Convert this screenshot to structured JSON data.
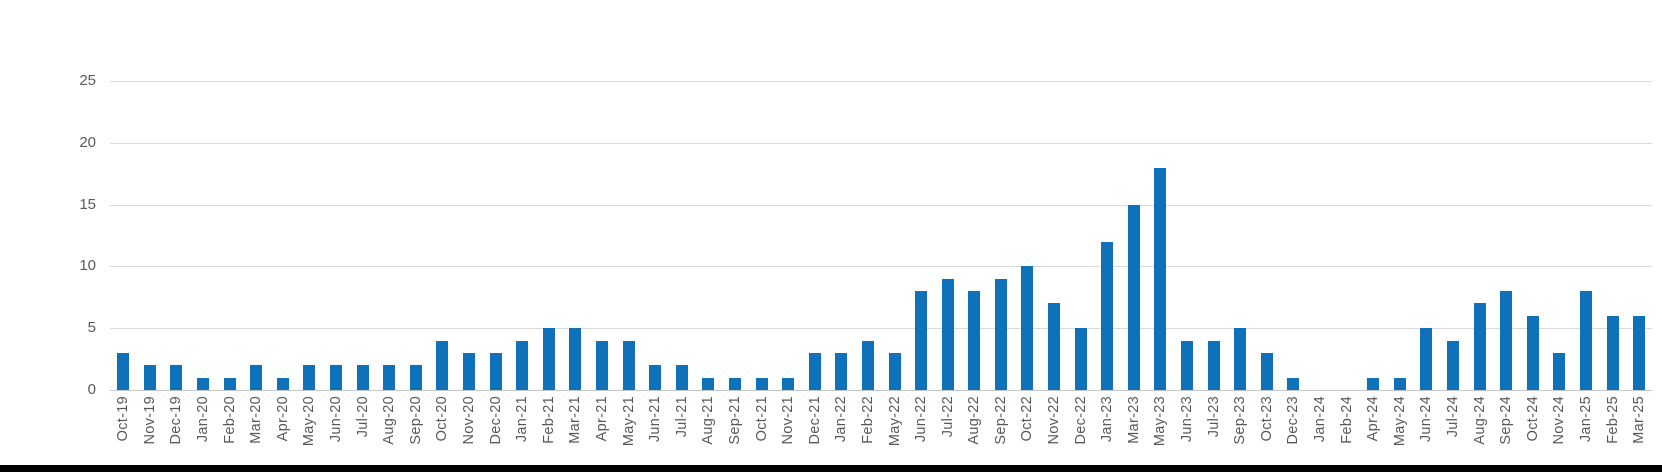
{
  "chart_data": {
    "type": "bar",
    "title": "",
    "xlabel": "",
    "ylabel": "",
    "categories": [
      "Oct-19",
      "Nov-19",
      "Dec-19",
      "Jan-20",
      "Feb-20",
      "Mar-20",
      "Apr-20",
      "May-20",
      "Jun-20",
      "Jul-20",
      "Aug-20",
      "Sep-20",
      "Oct-20",
      "Nov-20",
      "Dec-20",
      "Jan-21",
      "Feb-21",
      "Mar-21",
      "Apr-21",
      "May-21",
      "Jun-21",
      "Jul-21",
      "Aug-21",
      "Sep-21",
      "Oct-21",
      "Nov-21",
      "Dec-21",
      "Jan-22",
      "Feb-22",
      "May-22",
      "Jun-22",
      "Jul-22",
      "Aug-22",
      "Sep-22",
      "Oct-22",
      "Nov-22",
      "Dec-22",
      "Jan-23",
      "Mar-23",
      "May-23",
      "Jun-23",
      "Jul-23",
      "Sep-23",
      "Oct-23",
      "Dec-23",
      "Jan-24",
      "Feb-24",
      "Apr-24",
      "May-24",
      "Jun-24",
      "Jul-24",
      "Aug-24",
      "Sep-24",
      "Oct-24",
      "Nov-24",
      "Jan-25",
      "Feb-25",
      "Mar-25"
    ],
    "values": [
      3,
      2,
      2,
      1,
      1,
      2,
      1,
      2,
      2,
      2,
      2,
      2,
      4,
      3,
      3,
      4,
      5,
      5,
      4,
      4,
      2,
      2,
      1,
      1,
      1,
      1,
      3,
      3,
      4,
      3,
      8,
      9,
      8,
      9,
      10,
      7,
      5,
      12,
      15,
      18,
      4,
      4,
      5,
      3,
      1,
      0,
      0,
      1,
      1,
      5,
      4,
      7,
      8,
      6,
      3,
      8,
      6,
      6
    ],
    "yticks": [
      0,
      5,
      10,
      15,
      20,
      25
    ],
    "ylim": [
      0,
      25
    ],
    "grid": true,
    "legend_position": "none",
    "colors": {
      "bar": "#0e71ba",
      "gridline": "#d9d9d9",
      "axis_line": "#c6c6c6",
      "tick_label": "#595959",
      "background": "#ffffff",
      "bottom_strip": "#000000"
    }
  }
}
